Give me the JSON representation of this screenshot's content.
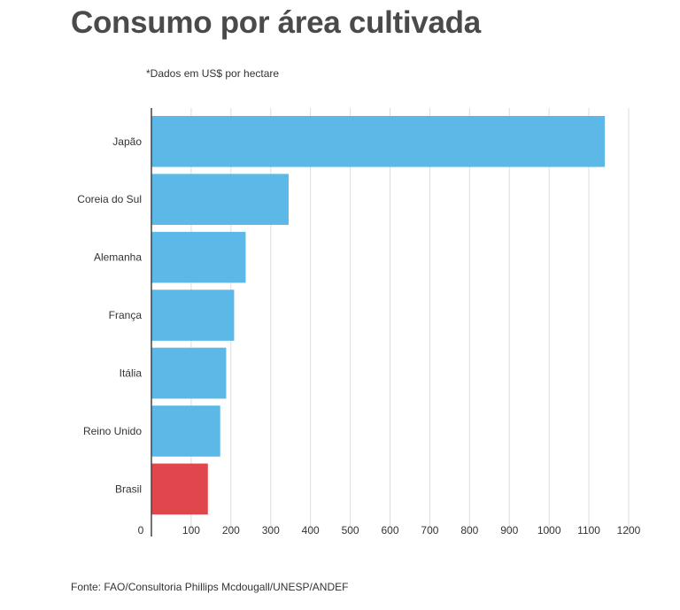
{
  "chart_data": {
    "type": "bar",
    "orientation": "horizontal",
    "title": "Consumo por área cultivada",
    "subtitle": "*Dados em US$ por hectare",
    "source": "Fonte: FAO/Consultoria Phillips Mcdougall/UNESP/ANDEF",
    "categories": [
      "Japão",
      "Coreia do Sul",
      "Alemanha",
      "França",
      "Itália",
      "Reino Unido",
      "Brasil"
    ],
    "values": [
      1140,
      345,
      237,
      208,
      188,
      173,
      142
    ],
    "bar_colors": [
      "#5cb8e6",
      "#5cb8e6",
      "#5cb8e6",
      "#5cb8e6",
      "#5cb8e6",
      "#5cb8e6",
      "#e0474c"
    ],
    "xlim": [
      0,
      1200
    ],
    "xticks": [
      "0",
      "100",
      "200",
      "300",
      "400",
      "500",
      "600",
      "700",
      "800",
      "900",
      "1000",
      "1100",
      "1200"
    ],
    "grid": true,
    "gridline_color": "#dddddd"
  }
}
